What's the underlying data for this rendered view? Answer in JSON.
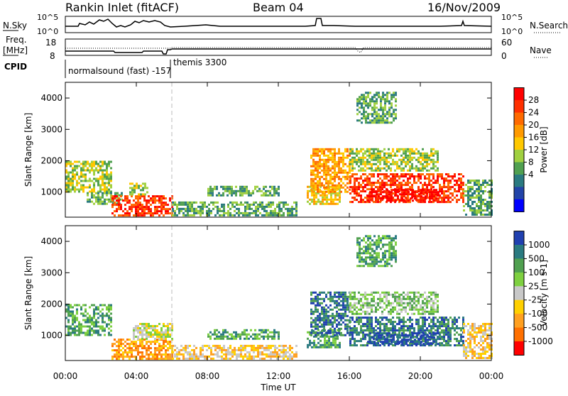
{
  "header": {
    "station": "Rankin Inlet (fitACF)",
    "beam": "Beam 04",
    "date": "16/Nov/2009"
  },
  "top_panel": {
    "left_label": "N.Sky",
    "left_ticks": [
      "10^5",
      "10^0"
    ],
    "right_label": "N.Search",
    "right_ticks": [
      "10^5",
      "10^0"
    ]
  },
  "freq_panel": {
    "left_label_1": "Freq.",
    "left_label_2": "[MHz]",
    "left_ticks": [
      "18",
      "8"
    ],
    "right_label": "Nave",
    "right_ticks": [
      "60",
      "0"
    ]
  },
  "cpid": {
    "label": "CPID",
    "mode_1": "normalsound (fast) -157",
    "mode_2": "themis 3300"
  },
  "x_axis": {
    "label": "Time UT",
    "ticks": [
      "00:00",
      "04:00",
      "08:00",
      "12:00",
      "16:00",
      "20:00",
      "00:00"
    ]
  },
  "chart_data": [
    {
      "type": "heatmap",
      "name": "power",
      "ylabel": "Slant Range [km]",
      "xlabel": "Time UT",
      "xlim_hours": [
        0,
        24
      ],
      "ylim": [
        200,
        4500
      ],
      "yticks": [
        "1000",
        "2000",
        "3000",
        "4000"
      ],
      "colorbar": {
        "label": "Power [dB]",
        "ticks": [
          "28",
          "24",
          "20",
          "16",
          "12",
          "8",
          "4"
        ],
        "colors": [
          "#ff0000",
          "#ff3000",
          "#ff6a00",
          "#ff9a00",
          "#ffc800",
          "#a0d040",
          "#50a050",
          "#2a7a80",
          "#2244a8",
          "#0000ff"
        ]
      },
      "regions": [
        {
          "t": [
            0.0,
            2.6
          ],
          "r": [
            1000,
            2000
          ],
          "level": 4
        },
        {
          "t": [
            1.2,
            3.2
          ],
          "r": [
            600,
            1000
          ],
          "level": 3
        },
        {
          "t": [
            2.6,
            6.0
          ],
          "r": [
            250,
            900
          ],
          "level": 8
        },
        {
          "t": [
            3.6,
            4.6
          ],
          "r": [
            900,
            1300
          ],
          "level": 4
        },
        {
          "t": [
            6.0,
            13.0
          ],
          "r": [
            250,
            700
          ],
          "level": 3
        },
        {
          "t": [
            8.0,
            12.0
          ],
          "r": [
            900,
            1200
          ],
          "level": 3
        },
        {
          "t": [
            13.6,
            15.4
          ],
          "r": [
            600,
            1200
          ],
          "level": 5
        },
        {
          "t": [
            13.8,
            16.0
          ],
          "r": [
            1000,
            2400
          ],
          "level": 6
        },
        {
          "t": [
            16.0,
            22.4
          ],
          "r": [
            700,
            1600
          ],
          "level": 8
        },
        {
          "t": [
            17.0,
            21.0
          ],
          "r": [
            700,
            1100
          ],
          "level": 9
        },
        {
          "t": [
            16.0,
            21.0
          ],
          "r": [
            1700,
            2400
          ],
          "level": 4
        },
        {
          "t": [
            16.4,
            18.6
          ],
          "r": [
            3200,
            4200
          ],
          "level": 3
        },
        {
          "t": [
            22.4,
            24.0
          ],
          "r": [
            250,
            1400
          ],
          "level": 3
        }
      ]
    },
    {
      "type": "heatmap",
      "name": "velocity",
      "ylabel": "Slant Range [km]",
      "xlabel": "Time UT",
      "xlim_hours": [
        0,
        24
      ],
      "ylim": [
        200,
        4500
      ],
      "yticks": [
        "1000",
        "2000",
        "3000",
        "4000"
      ],
      "colorbar": {
        "label": "Velocity [m s-1]",
        "ticks": [
          "1000",
          "500",
          "100",
          "25",
          "-25",
          "-100",
          "-500",
          "-1000"
        ],
        "colors": [
          "#2040b0",
          "#2a7a80",
          "#50a050",
          "#7ed040",
          "#c8c8c8",
          "#ffd000",
          "#ffa020",
          "#ff7000",
          "#ff0000"
        ]
      },
      "regions": [
        {
          "t": [
            0.0,
            2.6
          ],
          "r": [
            1000,
            2000
          ],
          "level": 6
        },
        {
          "t": [
            2.6,
            6.0
          ],
          "r": [
            250,
            900
          ],
          "level": 2
        },
        {
          "t": [
            3.8,
            6.0
          ],
          "r": [
            900,
            1400
          ],
          "level": 4
        },
        {
          "t": [
            6.0,
            13.0
          ],
          "r": [
            250,
            700
          ],
          "level": 3
        },
        {
          "t": [
            8.0,
            12.0
          ],
          "r": [
            900,
            1200
          ],
          "level": 6
        },
        {
          "t": [
            13.6,
            15.4
          ],
          "r": [
            600,
            1200
          ],
          "level": 6
        },
        {
          "t": [
            13.8,
            16.0
          ],
          "r": [
            1000,
            2400
          ],
          "level": 7
        },
        {
          "t": [
            16.0,
            22.4
          ],
          "r": [
            700,
            1600
          ],
          "level": 7
        },
        {
          "t": [
            17.0,
            21.0
          ],
          "r": [
            700,
            1100
          ],
          "level": 8
        },
        {
          "t": [
            16.0,
            21.0
          ],
          "r": [
            1700,
            2400
          ],
          "level": 5
        },
        {
          "t": [
            16.4,
            18.6
          ],
          "r": [
            3200,
            4200
          ],
          "level": 6
        },
        {
          "t": [
            22.4,
            24.0
          ],
          "r": [
            250,
            1400
          ],
          "level": 3
        }
      ]
    }
  ]
}
